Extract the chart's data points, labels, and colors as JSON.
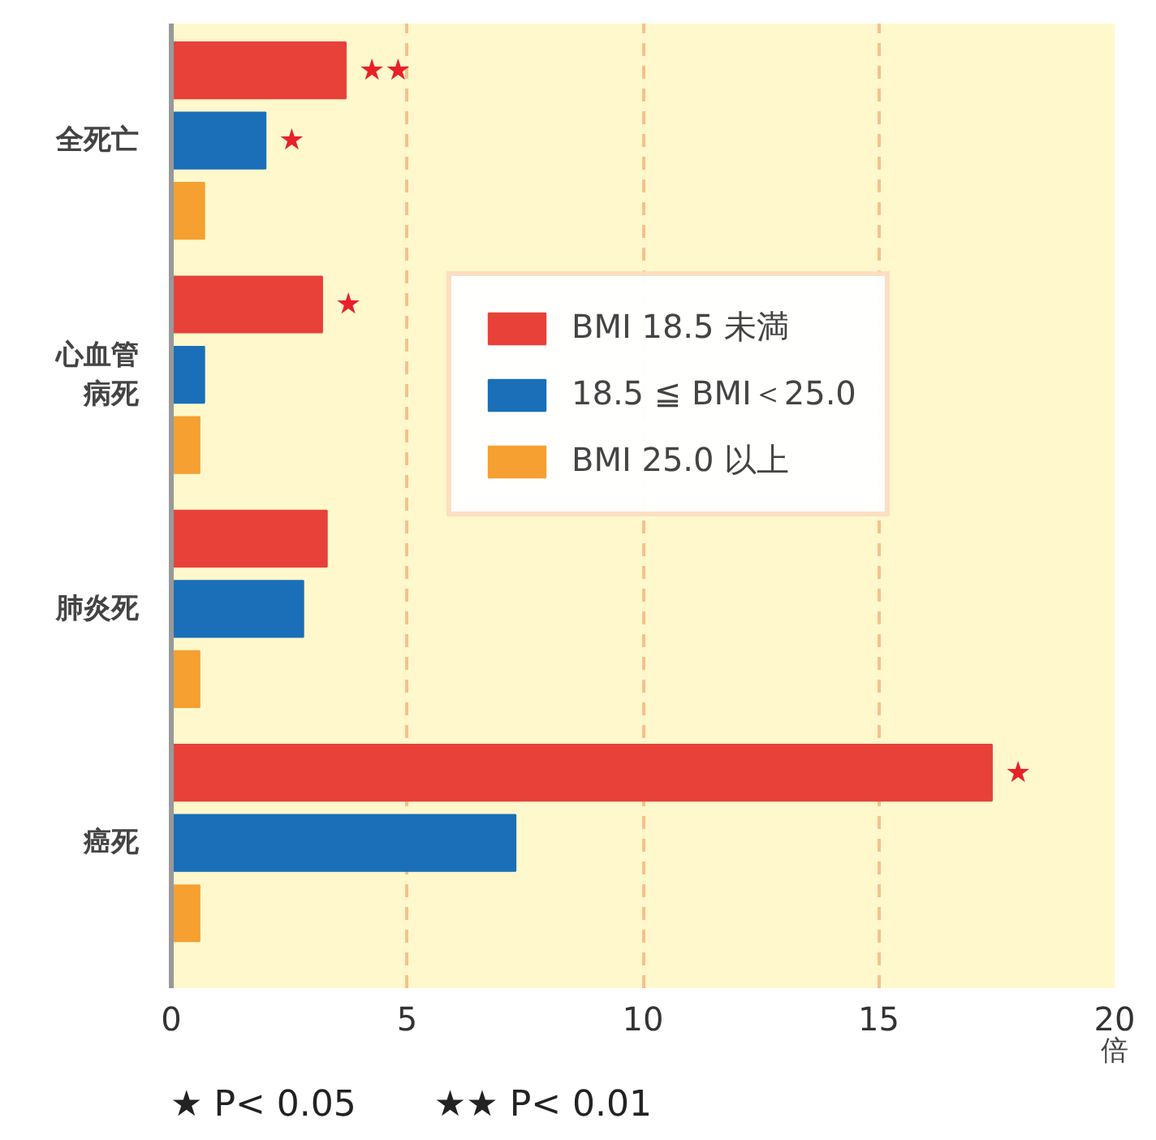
{
  "chart_data": {
    "type": "bar",
    "orientation": "horizontal",
    "categories": [
      "全死亡",
      "心血管病死",
      "肺炎死",
      "癌死"
    ],
    "series": [
      {
        "name": "BMI 18.5 未満",
        "color": "#e8413a",
        "values": [
          3.7,
          3.2,
          3.3,
          17.4
        ],
        "value_labels": [
          "★★",
          "★",
          null,
          "★"
        ]
      },
      {
        "name": "18.5 ≦ BMI＜25.0",
        "color": "#1a6fb8",
        "values": [
          2.0,
          0.7,
          2.8,
          7.3
        ],
        "value_labels": [
          "★",
          null,
          null,
          null
        ]
      },
      {
        "name": "BMI 25.0 以上",
        "color": "#f5a030",
        "values": [
          0.7,
          0.6,
          0.6,
          0.6
        ]
      }
    ],
    "xlim": [
      0,
      20
    ],
    "xticks": [
      0,
      5,
      10,
      15,
      20
    ],
    "xlabel": "倍",
    "grid": "x",
    "legend": "top right",
    "annotations": [
      "★ P< 0.05",
      "★★ P< 0.01"
    ]
  }
}
